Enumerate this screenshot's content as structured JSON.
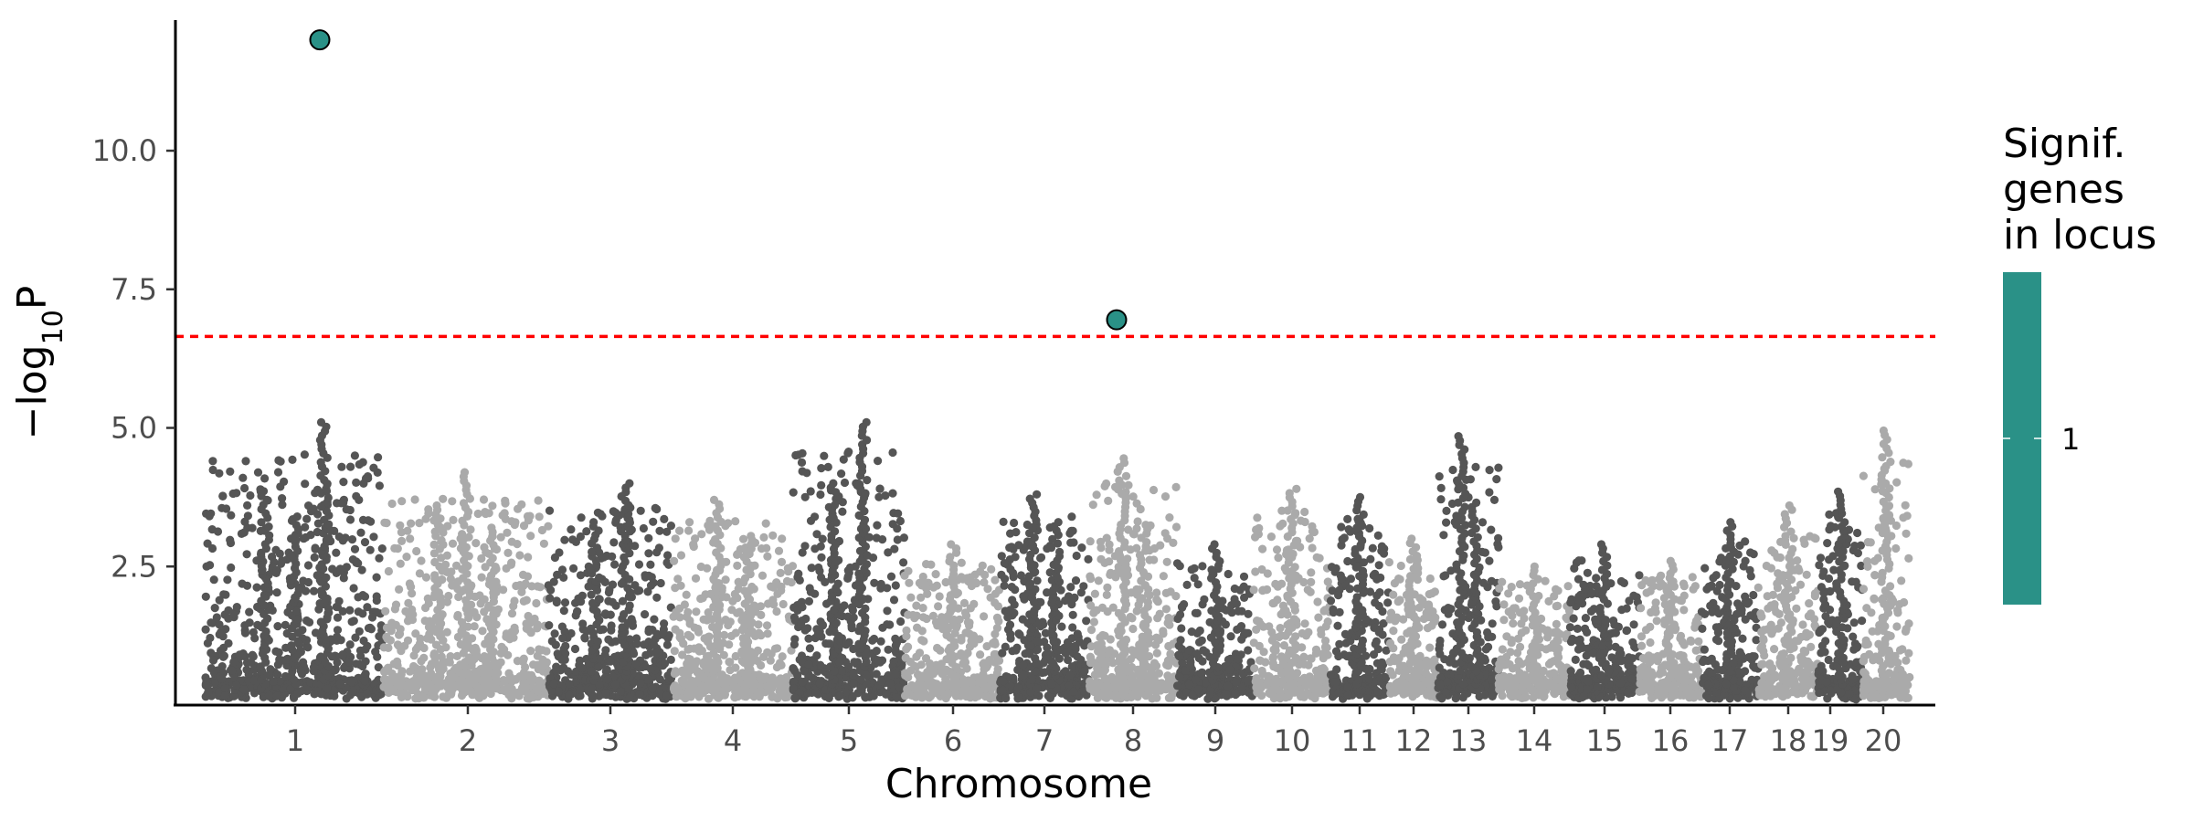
{
  "chart_data": {
    "type": "scatter",
    "subtype": "manhattan",
    "xlabel": "Chromosome",
    "ylabel_prefix": "−log",
    "ylabel_sub": "10",
    "ylabel_suffix": "P",
    "ylim": [
      0,
      12.3
    ],
    "yticks": [
      2.5,
      5.0,
      7.5,
      10.0
    ],
    "ytick_labels": [
      "2.5",
      "5.0",
      "7.5",
      "10.0"
    ],
    "threshold": 6.65,
    "threshold_color": "#ff0000",
    "colors": {
      "dark": "#555555",
      "light": "#aaaaaa",
      "highlight": "#2a9187"
    },
    "grid": false,
    "legend_placement": "right",
    "chromosomes": [
      {
        "label": "1",
        "peaks": [
          3.85,
          3.4,
          5.1
        ]
      },
      {
        "label": "2",
        "peaks": [
          3.6,
          4.2,
          3.2
        ]
      },
      {
        "label": "3",
        "peaks": [
          3.3,
          4.0
        ]
      },
      {
        "label": "4",
        "peaks": [
          3.7,
          3.05
        ]
      },
      {
        "label": "5",
        "peaks": [
          4.0,
          5.1
        ]
      },
      {
        "label": "6",
        "peaks": [
          2.9
        ]
      },
      {
        "label": "7",
        "peaks": [
          3.8,
          3.3
        ]
      },
      {
        "label": "8",
        "peaks": [
          4.45,
          3.25
        ]
      },
      {
        "label": "9",
        "peaks": [
          2.9
        ]
      },
      {
        "label": "10",
        "peaks": [
          3.9
        ]
      },
      {
        "label": "11",
        "peaks": [
          3.75
        ]
      },
      {
        "label": "12",
        "peaks": [
          3.0
        ]
      },
      {
        "label": "13",
        "peaks": [
          4.85,
          3.65
        ]
      },
      {
        "label": "14",
        "peaks": [
          2.5
        ]
      },
      {
        "label": "15",
        "peaks": [
          2.9
        ]
      },
      {
        "label": "16",
        "peaks": [
          2.6
        ]
      },
      {
        "label": "17",
        "peaks": [
          3.3
        ]
      },
      {
        "label": "18",
        "peaks": [
          3.6
        ]
      },
      {
        "label": "19",
        "peaks": [
          3.85
        ]
      },
      {
        "label": "20",
        "peaks": [
          4.95
        ]
      }
    ],
    "significant_points": [
      {
        "chromosome": "1",
        "y": 12.0,
        "genes": 1
      },
      {
        "chromosome": "8",
        "y": 6.95,
        "genes": 1
      }
    ],
    "legend": {
      "title_lines": [
        "Signif.",
        "genes",
        "in locus"
      ],
      "labels": [
        "1"
      ]
    }
  }
}
